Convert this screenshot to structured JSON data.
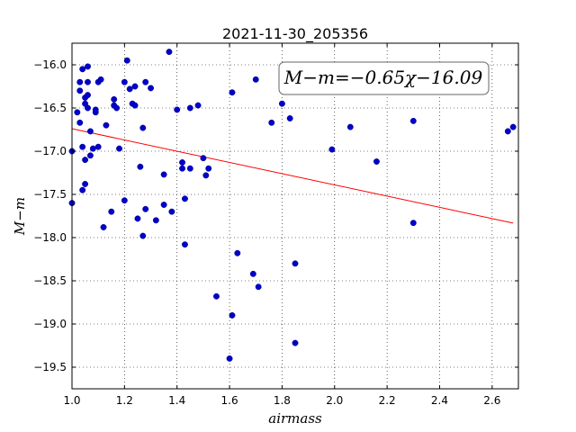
{
  "chart_data": {
    "type": "scatter",
    "title": "2021-11-30_205356",
    "xlabel": "airmass",
    "ylabel": "M−m",
    "xlim": [
      1.0,
      2.7
    ],
    "ylim": [
      -15.75,
      -19.75
    ],
    "y_inverted": true,
    "grid": true,
    "x_ticks": [
      "1.0",
      "1.2",
      "1.4",
      "1.6",
      "1.8",
      "2.0",
      "2.2",
      "2.4",
      "2.6"
    ],
    "y_ticks": [
      "−16.0",
      "−16.5",
      "−17.0",
      "−17.5",
      "−18.0",
      "−18.5",
      "−19.0",
      "−19.5"
    ],
    "annotation": "M−m=−0.65χ−16.09",
    "marker_color": "#0000cc",
    "fit_color": "#ff0000",
    "fit": {
      "slope": -0.65,
      "intercept": -16.09,
      "x_range": [
        1.0,
        2.68
      ]
    },
    "points": [
      {
        "x": 1.0,
        "y": -17.0
      },
      {
        "x": 1.0,
        "y": -17.6
      },
      {
        "x": 1.02,
        "y": -16.55
      },
      {
        "x": 1.03,
        "y": -16.2
      },
      {
        "x": 1.03,
        "y": -16.3
      },
      {
        "x": 1.03,
        "y": -16.67
      },
      {
        "x": 1.04,
        "y": -16.05
      },
      {
        "x": 1.04,
        "y": -17.45
      },
      {
        "x": 1.04,
        "y": -16.95
      },
      {
        "x": 1.05,
        "y": -16.38
      },
      {
        "x": 1.05,
        "y": -16.45
      },
      {
        "x": 1.05,
        "y": -17.1
      },
      {
        "x": 1.05,
        "y": -17.38
      },
      {
        "x": 1.06,
        "y": -16.02
      },
      {
        "x": 1.06,
        "y": -16.35
      },
      {
        "x": 1.06,
        "y": -16.5
      },
      {
        "x": 1.06,
        "y": -16.2
      },
      {
        "x": 1.07,
        "y": -17.05
      },
      {
        "x": 1.07,
        "y": -16.77
      },
      {
        "x": 1.08,
        "y": -16.97
      },
      {
        "x": 1.09,
        "y": -16.55
      },
      {
        "x": 1.09,
        "y": -16.52
      },
      {
        "x": 1.1,
        "y": -16.95
      },
      {
        "x": 1.1,
        "y": -16.2
      },
      {
        "x": 1.11,
        "y": -16.17
      },
      {
        "x": 1.12,
        "y": -17.88
      },
      {
        "x": 1.13,
        "y": -16.7
      },
      {
        "x": 1.15,
        "y": -17.7
      },
      {
        "x": 1.16,
        "y": -16.4
      },
      {
        "x": 1.16,
        "y": -16.47
      },
      {
        "x": 1.17,
        "y": -16.5
      },
      {
        "x": 1.18,
        "y": -16.97
      },
      {
        "x": 1.2,
        "y": -17.57
      },
      {
        "x": 1.2,
        "y": -16.2
      },
      {
        "x": 1.21,
        "y": -15.95
      },
      {
        "x": 1.22,
        "y": -16.28
      },
      {
        "x": 1.23,
        "y": -16.45
      },
      {
        "x": 1.24,
        "y": -16.25
      },
      {
        "x": 1.24,
        "y": -16.47
      },
      {
        "x": 1.25,
        "y": -17.78
      },
      {
        "x": 1.26,
        "y": -17.18
      },
      {
        "x": 1.27,
        "y": -17.98
      },
      {
        "x": 1.27,
        "y": -16.73
      },
      {
        "x": 1.28,
        "y": -17.67
      },
      {
        "x": 1.28,
        "y": -16.2
      },
      {
        "x": 1.3,
        "y": -16.27
      },
      {
        "x": 1.32,
        "y": -17.8
      },
      {
        "x": 1.35,
        "y": -17.62
      },
      {
        "x": 1.35,
        "y": -17.27
      },
      {
        "x": 1.37,
        "y": -15.85
      },
      {
        "x": 1.38,
        "y": -17.7
      },
      {
        "x": 1.4,
        "y": -16.52
      },
      {
        "x": 1.42,
        "y": -17.13
      },
      {
        "x": 1.42,
        "y": -17.2
      },
      {
        "x": 1.43,
        "y": -17.55
      },
      {
        "x": 1.43,
        "y": -18.08
      },
      {
        "x": 1.45,
        "y": -17.2
      },
      {
        "x": 1.45,
        "y": -16.5
      },
      {
        "x": 1.48,
        "y": -16.47
      },
      {
        "x": 1.5,
        "y": -17.08
      },
      {
        "x": 1.51,
        "y": -17.28
      },
      {
        "x": 1.52,
        "y": -17.2
      },
      {
        "x": 1.55,
        "y": -18.68
      },
      {
        "x": 1.6,
        "y": -19.4
      },
      {
        "x": 1.61,
        "y": -18.9
      },
      {
        "x": 1.61,
        "y": -16.32
      },
      {
        "x": 1.63,
        "y": -18.18
      },
      {
        "x": 1.69,
        "y": -18.42
      },
      {
        "x": 1.7,
        "y": -16.17
      },
      {
        "x": 1.71,
        "y": -18.57
      },
      {
        "x": 1.76,
        "y": -16.67
      },
      {
        "x": 1.8,
        "y": -16.45
      },
      {
        "x": 1.83,
        "y": -16.62
      },
      {
        "x": 1.85,
        "y": -19.22
      },
      {
        "x": 1.85,
        "y": -18.3
      },
      {
        "x": 1.99,
        "y": -16.98
      },
      {
        "x": 2.06,
        "y": -16.72
      },
      {
        "x": 2.16,
        "y": -17.12
      },
      {
        "x": 2.3,
        "y": -16.65
      },
      {
        "x": 2.3,
        "y": -17.83
      },
      {
        "x": 2.66,
        "y": -16.77
      },
      {
        "x": 2.68,
        "y": -16.72
      }
    ]
  }
}
